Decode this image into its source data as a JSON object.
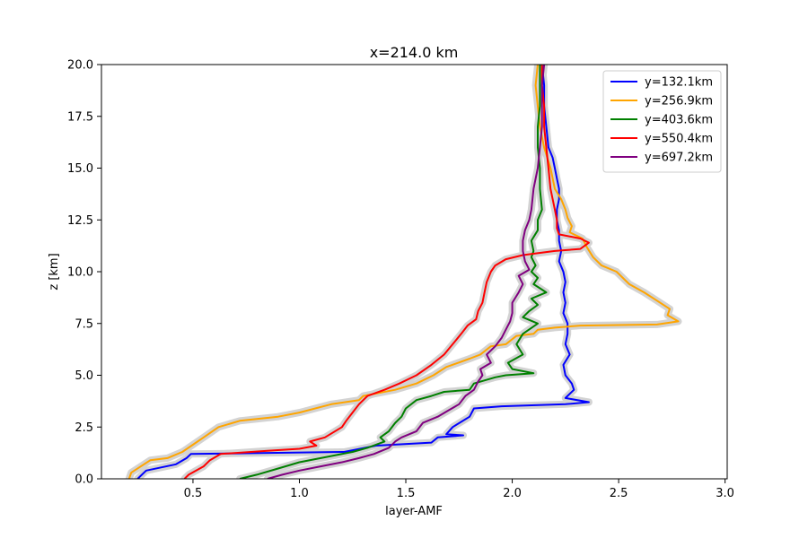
{
  "chart_data": {
    "type": "line",
    "title": "x=214.0 km",
    "xlabel": "layer-AMF",
    "ylabel": "z [km]",
    "xlim": [
      0.07,
      3.01
    ],
    "ylim": [
      0,
      20
    ],
    "x_ticks": [
      "0.5",
      "1.0",
      "1.5",
      "2.0",
      "2.5",
      "3.0"
    ],
    "x_tick_values": [
      0.5,
      1.0,
      1.5,
      2.0,
      2.5,
      3.0
    ],
    "y_ticks": [
      "0.0",
      "2.5",
      "5.0",
      "7.5",
      "10.0",
      "12.5",
      "15.0",
      "17.5",
      "20.0"
    ],
    "y_tick_values": [
      0,
      2.5,
      5,
      7.5,
      10,
      12.5,
      15,
      17.5,
      20
    ],
    "grid": false,
    "legend": "top-right",
    "uncertainty_band_color": "#d3d3d3",
    "series": [
      {
        "name": "y=132.1km",
        "color": "#0000ff",
        "points": [
          [
            0.24,
            0
          ],
          [
            0.28,
            0.4
          ],
          [
            0.42,
            0.7
          ],
          [
            0.47,
            1.0
          ],
          [
            0.49,
            1.2
          ],
          [
            1.21,
            1.3
          ],
          [
            1.36,
            1.6
          ],
          [
            1.62,
            1.75
          ],
          [
            1.65,
            2.0
          ],
          [
            1.77,
            2.1
          ],
          [
            1.69,
            2.15
          ],
          [
            1.72,
            2.5
          ],
          [
            1.8,
            3.0
          ],
          [
            1.82,
            3.4
          ],
          [
            1.95,
            3.5
          ],
          [
            2.25,
            3.6
          ],
          [
            2.36,
            3.7
          ],
          [
            2.25,
            3.9
          ],
          [
            2.29,
            4.3
          ],
          [
            2.28,
            4.6
          ],
          [
            2.25,
            5.0
          ],
          [
            2.24,
            5.5
          ],
          [
            2.27,
            6.0
          ],
          [
            2.25,
            6.5
          ],
          [
            2.26,
            7.0
          ],
          [
            2.26,
            7.5
          ],
          [
            2.24,
            8.0
          ],
          [
            2.25,
            8.5
          ],
          [
            2.24,
            9.0
          ],
          [
            2.25,
            9.5
          ],
          [
            2.24,
            10.0
          ],
          [
            2.22,
            10.5
          ],
          [
            2.23,
            11.0
          ],
          [
            2.22,
            11.5
          ],
          [
            2.22,
            12.0
          ],
          [
            2.21,
            12.5
          ],
          [
            2.21,
            13.0
          ],
          [
            2.22,
            13.5
          ],
          [
            2.22,
            14.0
          ],
          [
            2.21,
            14.5
          ],
          [
            2.2,
            15.0
          ],
          [
            2.19,
            15.5
          ],
          [
            2.17,
            16.0
          ],
          [
            2.16,
            17.0
          ],
          [
            2.15,
            18.0
          ],
          [
            2.15,
            19.0
          ],
          [
            2.14,
            20.0
          ]
        ]
      },
      {
        "name": "y=256.9km",
        "color": "#ffa500",
        "points": [
          [
            0.2,
            0
          ],
          [
            0.21,
            0.3
          ],
          [
            0.3,
            0.9
          ],
          [
            0.38,
            1.0
          ],
          [
            0.45,
            1.3
          ],
          [
            0.55,
            2.0
          ],
          [
            0.62,
            2.5
          ],
          [
            0.72,
            2.8
          ],
          [
            0.9,
            3.0
          ],
          [
            1.0,
            3.2
          ],
          [
            1.15,
            3.6
          ],
          [
            1.28,
            3.8
          ],
          [
            1.3,
            4.0
          ],
          [
            1.45,
            4.3
          ],
          [
            1.55,
            4.6
          ],
          [
            1.63,
            5.0
          ],
          [
            1.69,
            5.4
          ],
          [
            1.8,
            5.8
          ],
          [
            1.85,
            6.0
          ],
          [
            1.9,
            6.4
          ],
          [
            1.97,
            6.5
          ],
          [
            2.02,
            6.9
          ],
          [
            2.1,
            7.0
          ],
          [
            2.12,
            7.2
          ],
          [
            2.2,
            7.3
          ],
          [
            2.32,
            7.4
          ],
          [
            2.68,
            7.45
          ],
          [
            2.78,
            7.6
          ],
          [
            2.73,
            7.9
          ],
          [
            2.74,
            8.2
          ],
          [
            2.68,
            8.6
          ],
          [
            2.62,
            9.0
          ],
          [
            2.55,
            9.4
          ],
          [
            2.49,
            10.0
          ],
          [
            2.42,
            10.3
          ],
          [
            2.38,
            10.7
          ],
          [
            2.35,
            11.2
          ],
          [
            2.33,
            11.6
          ],
          [
            2.27,
            11.9
          ],
          [
            2.28,
            12.2
          ],
          [
            2.26,
            12.6
          ],
          [
            2.25,
            13.0
          ],
          [
            2.23,
            13.5
          ],
          [
            2.2,
            14.0
          ],
          [
            2.18,
            15.0
          ],
          [
            2.15,
            16.0
          ],
          [
            2.13,
            17.0
          ],
          [
            2.12,
            18.0
          ],
          [
            2.11,
            19.0
          ],
          [
            2.12,
            20.0
          ]
        ]
      },
      {
        "name": "y=403.6km",
        "color": "#008000",
        "points": [
          [
            0.72,
            0
          ],
          [
            0.8,
            0.2
          ],
          [
            0.9,
            0.5
          ],
          [
            1.0,
            0.8
          ],
          [
            1.1,
            1.0
          ],
          [
            1.25,
            1.3
          ],
          [
            1.32,
            1.5
          ],
          [
            1.4,
            1.8
          ],
          [
            1.38,
            2.0
          ],
          [
            1.42,
            2.3
          ],
          [
            1.45,
            2.7
          ],
          [
            1.48,
            3.0
          ],
          [
            1.5,
            3.4
          ],
          [
            1.55,
            3.8
          ],
          [
            1.62,
            4.0
          ],
          [
            1.68,
            4.2
          ],
          [
            1.8,
            4.3
          ],
          [
            1.82,
            4.6
          ],
          [
            1.92,
            4.9
          ],
          [
            1.97,
            5.0
          ],
          [
            2.1,
            5.1
          ],
          [
            2.0,
            5.3
          ],
          [
            1.98,
            5.6
          ],
          [
            2.05,
            6.0
          ],
          [
            2.02,
            6.5
          ],
          [
            2.05,
            7.0
          ],
          [
            2.12,
            7.5
          ],
          [
            2.05,
            7.8
          ],
          [
            2.08,
            8.1
          ],
          [
            2.12,
            8.4
          ],
          [
            2.09,
            8.7
          ],
          [
            2.16,
            9.0
          ],
          [
            2.1,
            9.4
          ],
          [
            2.12,
            9.7
          ],
          [
            2.09,
            10.0
          ],
          [
            2.11,
            10.3
          ],
          [
            2.09,
            10.7
          ],
          [
            2.1,
            11.0
          ],
          [
            2.09,
            11.5
          ],
          [
            2.12,
            12.0
          ],
          [
            2.12,
            12.5
          ],
          [
            2.14,
            13.0
          ],
          [
            2.13,
            14.0
          ],
          [
            2.13,
            15.0
          ],
          [
            2.12,
            16.0
          ],
          [
            2.12,
            17.0
          ],
          [
            2.13,
            18.0
          ],
          [
            2.13,
            19.0
          ],
          [
            2.13,
            20.0
          ]
        ]
      },
      {
        "name": "y=550.4km",
        "color": "#ff0000",
        "points": [
          [
            0.46,
            0
          ],
          [
            0.48,
            0.2
          ],
          [
            0.55,
            0.6
          ],
          [
            0.58,
            0.9
          ],
          [
            0.63,
            1.2
          ],
          [
            0.85,
            1.35
          ],
          [
            1.0,
            1.45
          ],
          [
            1.08,
            1.6
          ],
          [
            1.05,
            1.8
          ],
          [
            1.12,
            2.0
          ],
          [
            1.2,
            2.5
          ],
          [
            1.22,
            2.8
          ],
          [
            1.25,
            3.2
          ],
          [
            1.28,
            3.6
          ],
          [
            1.32,
            4.0
          ],
          [
            1.4,
            4.3
          ],
          [
            1.47,
            4.6
          ],
          [
            1.55,
            5.0
          ],
          [
            1.62,
            5.5
          ],
          [
            1.68,
            6.0
          ],
          [
            1.72,
            6.5
          ],
          [
            1.76,
            7.0
          ],
          [
            1.79,
            7.4
          ],
          [
            1.83,
            7.7
          ],
          [
            1.84,
            8.1
          ],
          [
            1.86,
            8.5
          ],
          [
            1.87,
            9.0
          ],
          [
            1.88,
            9.5
          ],
          [
            1.9,
            10.0
          ],
          [
            1.92,
            10.3
          ],
          [
            1.97,
            10.6
          ],
          [
            2.05,
            10.8
          ],
          [
            2.2,
            11.0
          ],
          [
            2.32,
            11.1
          ],
          [
            2.36,
            11.4
          ],
          [
            2.32,
            11.6
          ],
          [
            2.22,
            11.8
          ],
          [
            2.21,
            12.1
          ],
          [
            2.21,
            12.5
          ],
          [
            2.2,
            13.0
          ],
          [
            2.18,
            14.0
          ],
          [
            2.17,
            15.0
          ],
          [
            2.16,
            16.0
          ],
          [
            2.15,
            17.0
          ],
          [
            2.15,
            18.0
          ],
          [
            2.14,
            19.0
          ],
          [
            2.14,
            20.0
          ]
        ]
      },
      {
        "name": "y=697.2km",
        "color": "#800080",
        "points": [
          [
            0.85,
            0
          ],
          [
            0.92,
            0.2
          ],
          [
            1.0,
            0.4
          ],
          [
            1.1,
            0.6
          ],
          [
            1.2,
            0.8
          ],
          [
            1.28,
            1.0
          ],
          [
            1.35,
            1.2
          ],
          [
            1.42,
            1.5
          ],
          [
            1.45,
            1.8
          ],
          [
            1.48,
            2.0
          ],
          [
            1.55,
            2.3
          ],
          [
            1.58,
            2.7
          ],
          [
            1.65,
            3.0
          ],
          [
            1.7,
            3.3
          ],
          [
            1.75,
            3.6
          ],
          [
            1.78,
            4.0
          ],
          [
            1.82,
            4.3
          ],
          [
            1.84,
            4.7
          ],
          [
            1.86,
            5.0
          ],
          [
            1.85,
            5.3
          ],
          [
            1.9,
            5.6
          ],
          [
            1.88,
            6.0
          ],
          [
            1.92,
            6.4
          ],
          [
            1.95,
            6.8
          ],
          [
            1.97,
            7.2
          ],
          [
            1.99,
            7.6
          ],
          [
            2.0,
            8.0
          ],
          [
            2.0,
            8.5
          ],
          [
            2.03,
            9.0
          ],
          [
            2.05,
            9.4
          ],
          [
            2.03,
            9.8
          ],
          [
            2.08,
            10.1
          ],
          [
            2.06,
            10.5
          ],
          [
            2.05,
            11.0
          ],
          [
            2.05,
            11.5
          ],
          [
            2.06,
            12.0
          ],
          [
            2.08,
            12.5
          ],
          [
            2.09,
            13.0
          ],
          [
            2.1,
            14.0
          ],
          [
            2.12,
            15.0
          ],
          [
            2.13,
            16.0
          ],
          [
            2.14,
            17.0
          ],
          [
            2.14,
            18.0
          ],
          [
            2.14,
            19.0
          ],
          [
            2.15,
            20.0
          ]
        ]
      }
    ]
  }
}
